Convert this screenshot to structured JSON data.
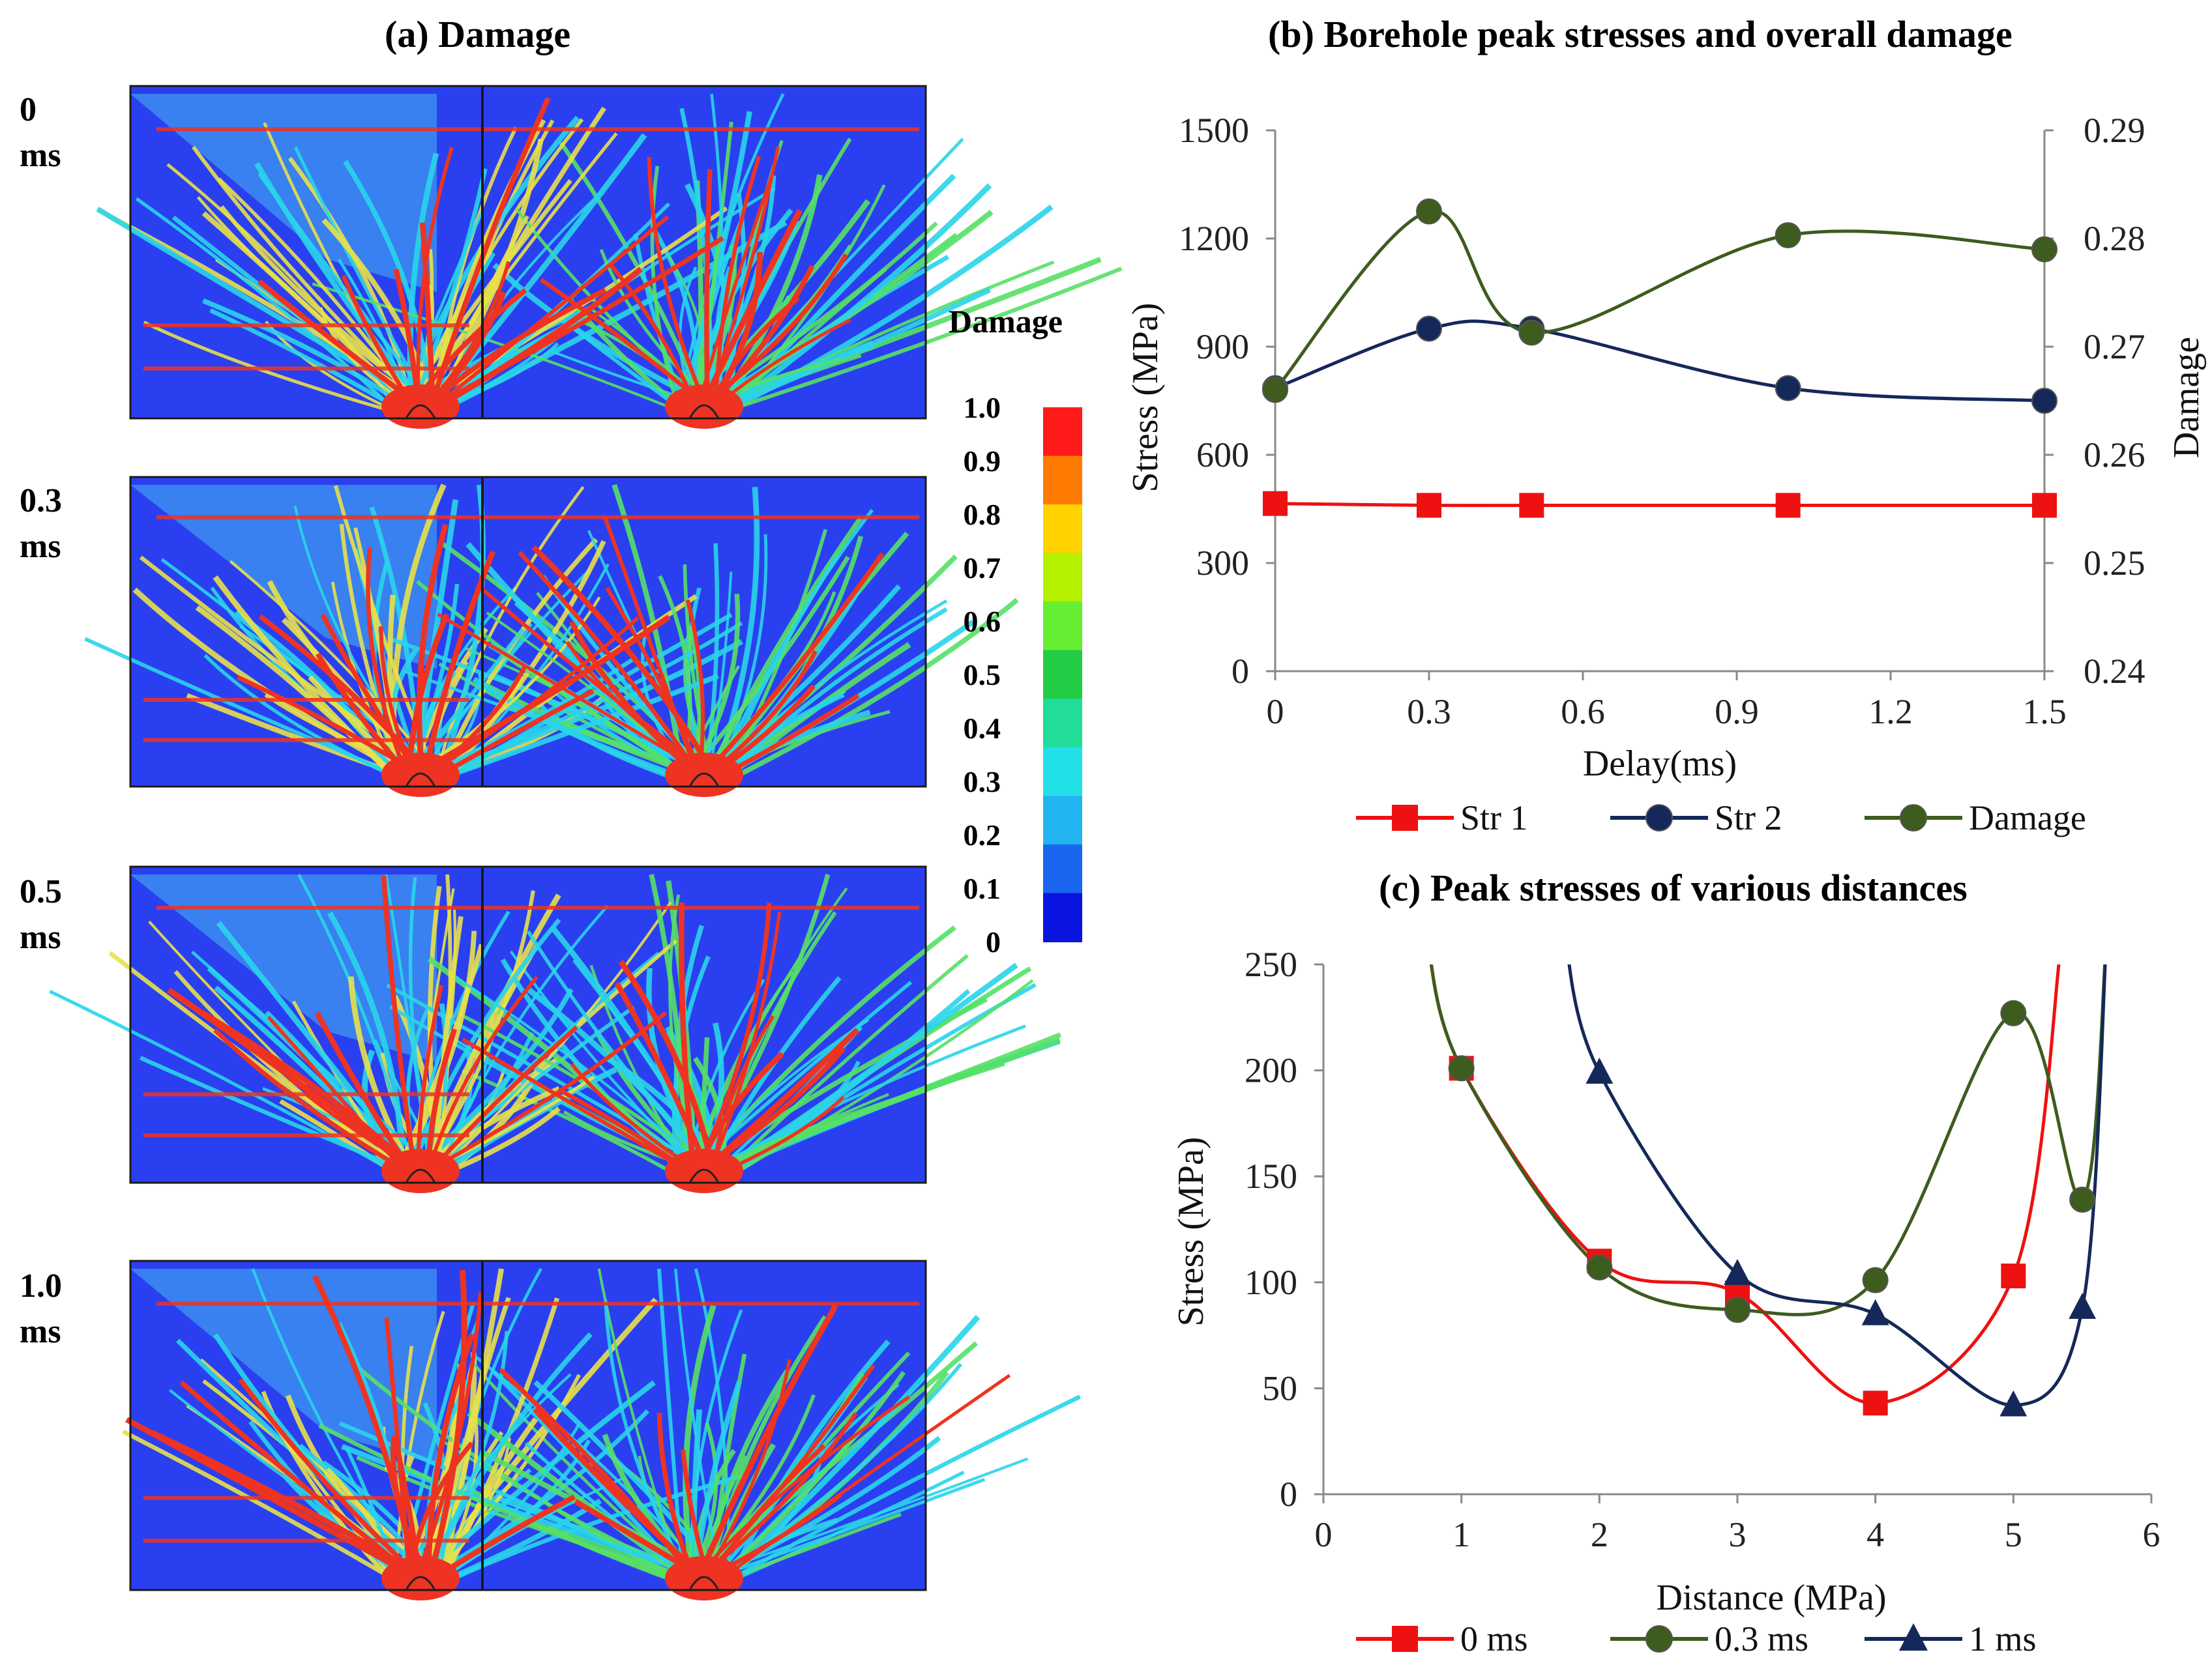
{
  "panel_a": {
    "title": "(a)   Damage",
    "rows": [
      {
        "label_top": "0",
        "label_bottom": "ms"
      },
      {
        "label_top": "0.3",
        "label_bottom": "ms"
      },
      {
        "label_top": "0.5",
        "label_bottom": "ms"
      },
      {
        "label_top": "1.0",
        "label_bottom": "ms"
      }
    ],
    "colorbar": {
      "title": "Damage",
      "ticks": [
        "1.0",
        "0.9",
        "0.8",
        "0.7",
        "0.6",
        "0.5",
        "0.4",
        "0.3",
        "0.2",
        "0.1",
        "0"
      ],
      "colors": [
        "#ff1a1a",
        "#ff7a00",
        "#ffd200",
        "#b4f000",
        "#66ee33",
        "#22cc44",
        "#22dd99",
        "#22e0e8",
        "#22b4f0",
        "#1a66ee",
        "#0a14e0"
      ]
    },
    "map_colors": {
      "background": "#2a40f0",
      "light": "#3c8cf0",
      "cyan": "#29d4ea",
      "green": "#55e066",
      "yellow": "#e8e04a",
      "red": "#ee3322",
      "frame": "#1a1a1a"
    }
  },
  "chart_data": [
    {
      "type": "line",
      "title": "(b)   Borehole peak stresses and overall damage",
      "xlabel": "Delay(ms)",
      "ylabel": "Stress (MPa)",
      "y2label": "Damage",
      "xlim": [
        0,
        1.5
      ],
      "xticks": [
        "0",
        "0.3",
        "0.6",
        "0.9",
        "1.2",
        "1.5"
      ],
      "ylim": [
        0,
        1500
      ],
      "yticks": [
        "0",
        "300",
        "600",
        "900",
        "1200",
        "1500"
      ],
      "y2lim": [
        0.24,
        0.29
      ],
      "y2ticks": [
        "0.24",
        "0.25",
        "0.26",
        "0.27",
        "0.28",
        "0.29"
      ],
      "series": [
        {
          "name": "Str 1",
          "axis": "left",
          "marker": "square",
          "color": "#ee1111",
          "x": [
            0,
            0.3,
            0.5,
            1.0,
            1.5
          ],
          "y": [
            465,
            460,
            460,
            460,
            460
          ]
        },
        {
          "name": "Str 2",
          "axis": "left",
          "marker": "circle",
          "color": "#14285a",
          "x": [
            0,
            0.3,
            0.5,
            1.0,
            1.5
          ],
          "y": [
            785,
            950,
            950,
            785,
            750
          ]
        },
        {
          "name": "Damage",
          "axis": "right",
          "marker": "circle",
          "color": "#3d5c1e",
          "x": [
            0,
            0.3,
            0.5,
            1.0,
            1.5
          ],
          "y": [
            0.266,
            0.2825,
            0.2713,
            0.2803,
            0.279
          ]
        }
      ],
      "legend_position": "bottom"
    },
    {
      "type": "line",
      "title": "(c)   Peak stresses of various distances",
      "xlabel": "Distance (MPa)",
      "ylabel": "Stress (MPa)",
      "xlim": [
        0,
        6
      ],
      "xticks": [
        "0",
        "1",
        "2",
        "3",
        "4",
        "5",
        "6"
      ],
      "ylim": [
        0,
        250
      ],
      "yticks": [
        "0",
        "50",
        "100",
        "150",
        "200",
        "250"
      ],
      "series": [
        {
          "name": "0 ms",
          "marker": "square",
          "color": "#ee1111",
          "x": [
            1,
            2,
            3,
            4,
            5
          ],
          "y": [
            201,
            110,
            95,
            43,
            103
          ]
        },
        {
          "name": "0.3 ms",
          "marker": "circle",
          "color": "#3d5c1e",
          "x": [
            1,
            2,
            3,
            4,
            5,
            5.5
          ],
          "y": [
            201,
            107,
            87,
            101,
            227,
            139
          ]
        },
        {
          "name": "1 ms",
          "marker": "triangle",
          "color": "#14285a",
          "x": [
            2,
            3,
            4,
            5,
            5.5
          ],
          "y": [
            199,
            104,
            85,
            42,
            88
          ]
        }
      ],
      "legend_position": "bottom"
    }
  ]
}
